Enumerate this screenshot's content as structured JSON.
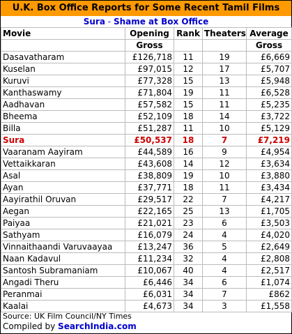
{
  "title": "U.K. Box Office Reports for Some Recent Tamil Films",
  "subtitle": {
    "film": "Sura",
    "separator": " - ",
    "text": "Shame at Box Office"
  },
  "headers": {
    "movie": "Movie",
    "opening_l1": "Opening",
    "opening_l2": "Gross",
    "rank": "Rank",
    "theaters": "Theaters",
    "average_l1": "Average",
    "average_l2": "Gross"
  },
  "highlight_color": "#cc0000",
  "accent_color": "#ff9900",
  "chart_data": {
    "type": "table",
    "title": "U.K. Box Office Reports for Some Recent Tamil Films",
    "subtitle": "Sura - Shame at Box Office",
    "columns": [
      "Movie",
      "Opening Gross",
      "Rank",
      "Theaters",
      "Average Gross"
    ],
    "rows": [
      {
        "movie": "Dasavatharam",
        "opening": "£126,718",
        "rank": "11",
        "theaters": "19",
        "average": "£6,669"
      },
      {
        "movie": "Kuselan",
        "opening": "£97,015",
        "rank": "12",
        "theaters": "17",
        "average": "£5,707"
      },
      {
        "movie": "Kuruvi",
        "opening": "£77,328",
        "rank": "15",
        "theaters": "13",
        "average": "£5,948"
      },
      {
        "movie": "Kanthaswamy",
        "opening": "£71,804",
        "rank": "19",
        "theaters": "11",
        "average": "£6,528"
      },
      {
        "movie": "Aadhavan",
        "opening": "£57,582",
        "rank": "15",
        "theaters": "11",
        "average": "£5,235"
      },
      {
        "movie": "Bheema",
        "opening": "£52,109",
        "rank": "18",
        "theaters": "14",
        "average": "£3,722"
      },
      {
        "movie": "Billa",
        "opening": "£51,287",
        "rank": "11",
        "theaters": "10",
        "average": "£5,129"
      },
      {
        "movie": "Sura",
        "opening": "£50,537",
        "rank": "18",
        "theaters": "7",
        "average": "£7,219",
        "highlight": true
      },
      {
        "movie": "Vaaranam Aayiram",
        "opening": "£44,589",
        "rank": "16",
        "theaters": "9",
        "average": "£4,954"
      },
      {
        "movie": "Vettaikkaran",
        "opening": "£43,608",
        "rank": "14",
        "theaters": "12",
        "average": "£3,634"
      },
      {
        "movie": "Asal",
        "opening": "£38,809",
        "rank": "19",
        "theaters": "10",
        "average": "£3,880"
      },
      {
        "movie": "Ayan",
        "opening": "£37,771",
        "rank": "18",
        "theaters": "11",
        "average": "£3,434"
      },
      {
        "movie": "Aayirathil Oruvan",
        "opening": "£29,517",
        "rank": "22",
        "theaters": "7",
        "average": "£4,217"
      },
      {
        "movie": "Aegan",
        "opening": "£22,165",
        "rank": "25",
        "theaters": "13",
        "average": "£1,705"
      },
      {
        "movie": "Paiyaa",
        "opening": "£21,021",
        "rank": "23",
        "theaters": "6",
        "average": "£3,503"
      },
      {
        "movie": "Sathyam",
        "opening": "£16,079",
        "rank": "24",
        "theaters": "4",
        "average": "£4,020"
      },
      {
        "movie": "Vinnaithaandi Varuvaayaa",
        "opening": "£13,247",
        "rank": "36",
        "theaters": "5",
        "average": "£2,649"
      },
      {
        "movie": "Naan Kadavul",
        "opening": "£11,234",
        "rank": "32",
        "theaters": "4",
        "average": "£2,808"
      },
      {
        "movie": "Santosh Subramaniam",
        "opening": "£10,067",
        "rank": "40",
        "theaters": "4",
        "average": "£2,517"
      },
      {
        "movie": "Angadi Theru",
        "opening": "£6,446",
        "rank": "34",
        "theaters": "6",
        "average": "£1,074"
      },
      {
        "movie": "Peranmai",
        "opening": "£6,031",
        "rank": "34",
        "theaters": "7",
        "average": "£862"
      },
      {
        "movie": "Kaalai",
        "opening": "£4,673",
        "rank": "34",
        "theaters": "3",
        "average": "£1,558"
      }
    ]
  },
  "footer": {
    "source": "Source: UK Film Council/NY Times",
    "compiled_prefix": "Compiled by ",
    "compiled_brand": "SearchIndia.com"
  }
}
